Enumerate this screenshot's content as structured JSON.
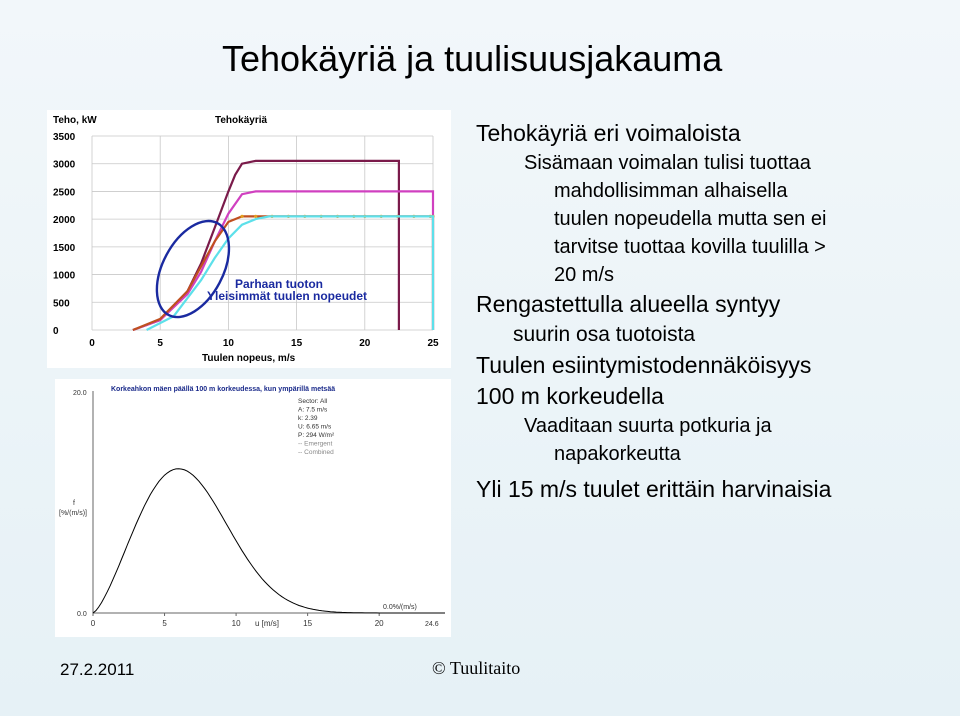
{
  "slide": {
    "title": "Tehokäyriä ja tuulisuusjakauma",
    "footer_date": "27.2.2011",
    "footer_brand": "© Tuulitaito",
    "bullets": [
      {
        "level": 1,
        "text": "Tehokäyriä eri voimaloista"
      },
      {
        "level": 2,
        "text": "Sisämaan voimalan tulisi tuottaa"
      },
      {
        "level": 2,
        "text": "mahdollisimman alhaisella"
      },
      {
        "level": 2,
        "text": "tuulen nopeudella mutta sen ei"
      },
      {
        "level": 2,
        "text": "tarvitse tuottaa kovilla tuulilla >"
      },
      {
        "level": 2,
        "text": "20 m/s"
      },
      {
        "level": 1,
        "text": "Rengastettulla alueella syntyy"
      },
      {
        "level": 1,
        "text": "suurin osa tuotoista"
      },
      {
        "level": 1,
        "text": "Tuulen esiintymistodennäköisyys"
      },
      {
        "level": 1,
        "text": "100 m korkeudella"
      },
      {
        "level": 2,
        "text": "Vaaditaan suurta potkuria ja"
      },
      {
        "level": 2,
        "text": "napakorkeutta"
      },
      {
        "level": 1,
        "text": "Yli 15 m/s tuulet erittäin harvinaisia"
      }
    ]
  },
  "chart_data": [
    {
      "type": "line",
      "title": "Tehokäyriä",
      "ylabel": "Teho, kW",
      "xlabel": "Tuulen nopeus, m/s",
      "xlim": [
        0,
        25
      ],
      "ylim": [
        0,
        3500
      ],
      "xticks": [
        "0",
        "5",
        "10",
        "15",
        "20",
        "25"
      ],
      "yticks": [
        "0",
        "500",
        "1000",
        "1500",
        "2000",
        "2500",
        "3000",
        "3500"
      ],
      "grid": true,
      "annotations": [
        "Parhaan tuoton",
        "Yleisimmät tuulen nopeudet"
      ],
      "series": [
        {
          "color": "#7a1a4a",
          "x": [
            3,
            5,
            7,
            8,
            9,
            10,
            10.5,
            11,
            12,
            13,
            20,
            22.5
          ],
          "y": [
            0,
            180,
            700,
            1200,
            1850,
            2500,
            2800,
            3000,
            3050,
            3050,
            3050,
            3050
          ],
          "cutout": 22.5
        },
        {
          "color": "#d040c0",
          "x": [
            3,
            5,
            7,
            8,
            9,
            10,
            11,
            12,
            13,
            20,
            25
          ],
          "y": [
            0,
            180,
            650,
            1050,
            1600,
            2100,
            2450,
            2500,
            2500,
            2500,
            2500
          ],
          "cutout": 25
        },
        {
          "color": "#c05020",
          "x": [
            3,
            5,
            7,
            8,
            9,
            10,
            11,
            12,
            20,
            25
          ],
          "y": [
            0,
            200,
            700,
            1150,
            1600,
            1950,
            2050,
            2050,
            2050,
            2050
          ],
          "cutout": 25
        },
        {
          "color": "#5de0ea",
          "x": [
            4,
            6,
            8,
            9,
            10,
            11,
            12,
            13,
            20,
            25
          ],
          "y": [
            0,
            250,
            900,
            1300,
            1650,
            1900,
            2000,
            2050,
            2050,
            2050
          ],
          "cutout": 25
        }
      ]
    },
    {
      "type": "line",
      "title": "Korkeahkon mäen päällä 100 m korkeudessa, kun ympärillä metsää",
      "ylabel": "f\n[%/(m/s)]",
      "xlabel": "u [m/s]",
      "xticks": [
        "0",
        "5",
        "10",
        "15",
        "20"
      ],
      "yticks": [
        "0.0",
        "20.0"
      ],
      "xlim": [
        0,
        24.6
      ],
      "ylim": [
        0,
        20
      ],
      "end_label": "24.6",
      "bottom_right_label": "0.0%/(m/s)",
      "legend": [
        "Sector: All",
        "A: 7.5 m/s",
        "k: 2.39",
        "U: 6.65 m/s",
        "P: 294 W/m²",
        "-- Emergent",
        "-- Combined"
      ],
      "weibull": {
        "A": 7.5,
        "k": 2.39
      }
    }
  ]
}
